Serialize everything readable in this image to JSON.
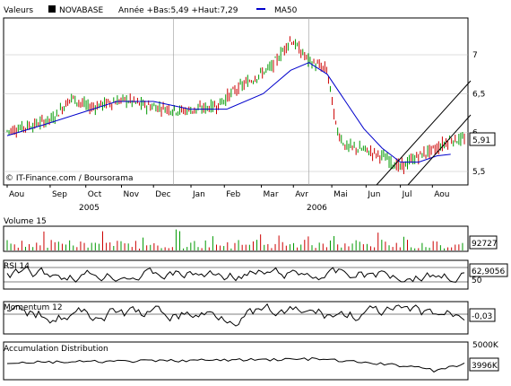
{
  "header": {
    "label": "Valeurs",
    "ticker": "NOVABASE",
    "range": "Année +Bas:5,49 +Haut:7,29",
    "ma_label": "MA50",
    "ma_color": "#0000cc"
  },
  "watermark": "© IT-Finance.com / Boursorama",
  "months": [
    "Aou",
    "Sep",
    "Oct",
    "Nov",
    "Dec",
    "Jan",
    "Feb",
    "Mar",
    "Avr",
    "Mai",
    "Jun",
    "Jul",
    "Aou"
  ],
  "years": [
    "2005",
    "2006"
  ],
  "colors": {
    "up": "#009900",
    "down": "#cc0000",
    "ma": "#0000cc",
    "line": "#000000"
  },
  "chart_data": [
    {
      "type": "candlestick",
      "title": "NOVABASE",
      "y_ticks": [
        5.5,
        6,
        6.5,
        7
      ],
      "y_tick_labels": [
        "5,5",
        "6",
        "6,5",
        "7"
      ],
      "ylim": [
        5.35,
        7.45
      ],
      "last_value": "5,91",
      "series": [
        {
          "name": "MA50",
          "x": [
            0,
            0.08,
            0.16,
            0.24,
            0.32,
            0.4,
            0.48,
            0.56,
            0.62,
            0.66,
            0.7,
            0.74,
            0.78,
            0.82,
            0.86,
            0.9,
            0.94,
            0.97
          ],
          "values": [
            5.96,
            6.1,
            6.25,
            6.4,
            6.4,
            6.3,
            6.3,
            6.5,
            6.8,
            6.9,
            6.75,
            6.4,
            6.05,
            5.8,
            5.62,
            5.62,
            5.7,
            5.72
          ]
        }
      ],
      "anchors": {
        "x": [
          0,
          0.06,
          0.1,
          0.14,
          0.18,
          0.22,
          0.26,
          0.3,
          0.34,
          0.38,
          0.42,
          0.46,
          0.5,
          0.54,
          0.58,
          0.62,
          0.66,
          0.7,
          0.72,
          0.74,
          0.78,
          0.82,
          0.86,
          0.9,
          0.94,
          0.97
        ],
        "y": [
          6.02,
          6.1,
          6.18,
          6.45,
          6.32,
          6.38,
          6.42,
          6.35,
          6.32,
          6.28,
          6.3,
          6.35,
          6.55,
          6.7,
          6.85,
          7.2,
          6.92,
          6.8,
          6.05,
          5.82,
          5.78,
          5.7,
          5.55,
          5.7,
          5.8,
          5.91
        ]
      }
    },
    {
      "type": "bar",
      "title": "Volume 15",
      "last_value": "92727"
    },
    {
      "type": "line",
      "title": "RSI 14",
      "last_value": "62,9056",
      "reference_lines": [
        "50"
      ]
    },
    {
      "type": "line",
      "title": "Momentum 12",
      "last_value": "-0,03"
    },
    {
      "type": "line",
      "title": "Accumulation Distribution",
      "y_tick_labels": [
        "5000K"
      ],
      "last_value": "3996K"
    }
  ]
}
